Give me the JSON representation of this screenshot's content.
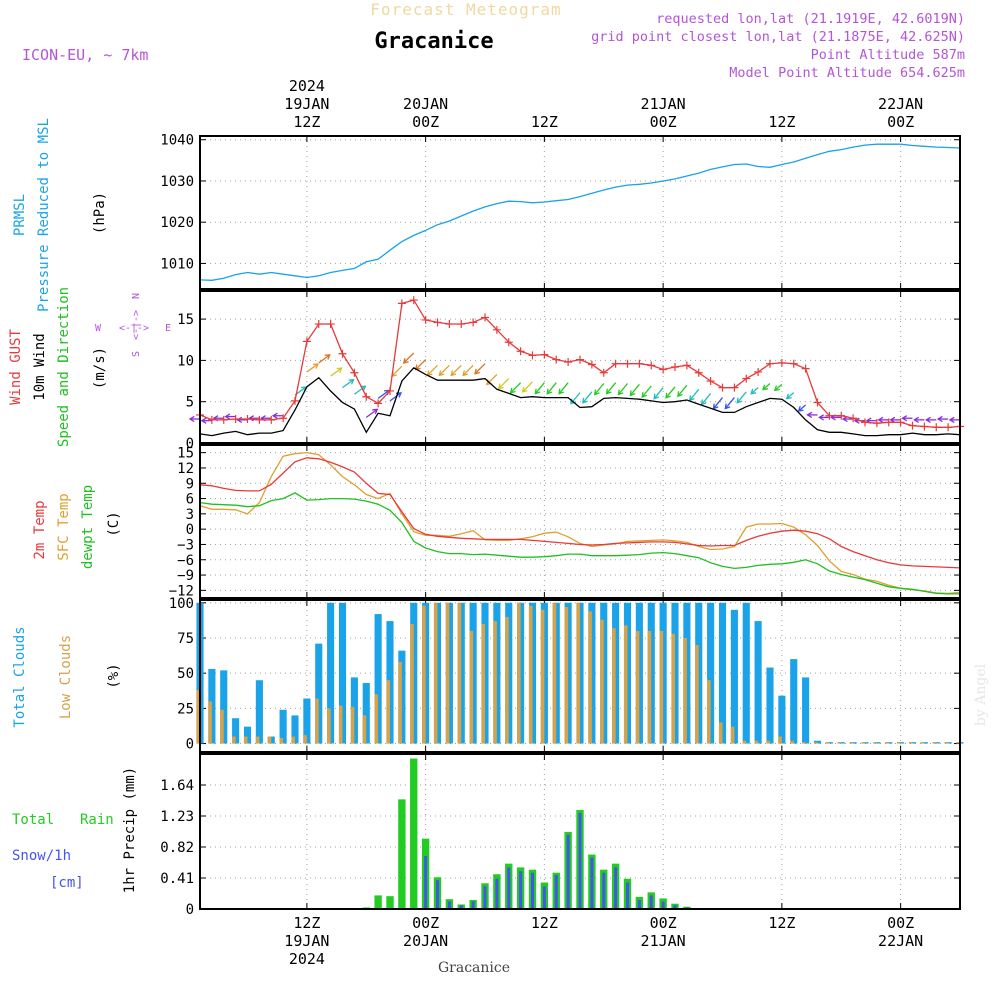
{
  "header": {
    "title": "Forecast Meteogram",
    "location": "Gracanice",
    "model": "ICON-EU, ~ 7km",
    "requested": "requested lon,lat (21.1919E, 42.6019N)",
    "gridpoint": "grid point closest lon,lat (21.1875E, 42.625N)",
    "altitude": "Point Altitude 587m",
    "model_altitude": "Model Point Altitude 654.625m",
    "watermark": "by Angel",
    "footer_location": "Gracanice"
  },
  "colors": {
    "pressure": "#1aa3e8",
    "gust": "#e83a3a",
    "wind": "#000000",
    "temp": "#e83a3a",
    "sfc": "#e0a030",
    "dewpt": "#20c020",
    "total_clouds": "#1aa3e8",
    "low_clouds": "#d4a34a",
    "rain": "#22cc22",
    "snow": "#4455ee",
    "label_purple": "#b455d8"
  },
  "axis": {
    "hours_start": 0,
    "hours_end": 64,
    "top_ticks": [
      {
        "h": 9,
        "l1": "2024",
        "l2": "19JAN",
        "l3": "12Z"
      },
      {
        "h": 19,
        "l1": "",
        "l2": "20JAN",
        "l3": "00Z"
      },
      {
        "h": 29,
        "l1": "",
        "l2": "",
        "l3": "12Z"
      },
      {
        "h": 39,
        "l1": "",
        "l2": "21JAN",
        "l3": "00Z"
      },
      {
        "h": 49,
        "l1": "",
        "l2": "",
        "l3": "12Z"
      },
      {
        "h": 59,
        "l1": "",
        "l2": "22JAN",
        "l3": "00Z"
      }
    ],
    "bottom_ticks": [
      {
        "h": 9,
        "l1": "12Z",
        "l2": "19JAN",
        "l3": "2024"
      },
      {
        "h": 19,
        "l1": "00Z",
        "l2": "20JAN",
        "l3": ""
      },
      {
        "h": 29,
        "l1": "12Z",
        "l2": "",
        "l3": ""
      },
      {
        "h": 39,
        "l1": "00Z",
        "l2": "21JAN",
        "l3": ""
      },
      {
        "h": 49,
        "l1": "12Z",
        "l2": "",
        "l3": ""
      },
      {
        "h": 59,
        "l1": "00Z",
        "l2": "22JAN",
        "l3": ""
      }
    ]
  },
  "chart_data": [
    {
      "id": "pressure",
      "type": "line",
      "title": "PRMSL Pressure Reduced to MSL",
      "labels": [
        "PRMSL",
        "Pressure Reduced to MSL"
      ],
      "ylabel": "(hPa)",
      "ylim": [
        1003.8,
        1040.9
      ],
      "yticks": [
        1010,
        1020,
        1030,
        1040
      ],
      "x": [
        0,
        1,
        2,
        3,
        4,
        5,
        6,
        7,
        8,
        9,
        10,
        11,
        12,
        13,
        14,
        15,
        16,
        17,
        18,
        19,
        20,
        21,
        22,
        23,
        24,
        25,
        26,
        27,
        28,
        29,
        30,
        31,
        32,
        33,
        34,
        35,
        36,
        37,
        38,
        39,
        40,
        41,
        42,
        43,
        44,
        45,
        46,
        47,
        48,
        49,
        50,
        51,
        52,
        53,
        54,
        55,
        56,
        57,
        58,
        59,
        60,
        61,
        62,
        63,
        64
      ],
      "values": [
        1006,
        1005.9,
        1006.4,
        1007.3,
        1007.8,
        1007.4,
        1007.8,
        1007.4,
        1007,
        1006.6,
        1007,
        1007.8,
        1008.3,
        1008.8,
        1010.4,
        1011,
        1013.2,
        1015.3,
        1016.8,
        1018,
        1019.4,
        1020.3,
        1021.5,
        1022.7,
        1023.7,
        1024.5,
        1025.1,
        1025,
        1024.7,
        1024.9,
        1025.2,
        1025.5,
        1026.2,
        1027,
        1027.8,
        1028.5,
        1029,
        1029.2,
        1029.5,
        1030,
        1030.5,
        1031.2,
        1031.9,
        1032.8,
        1033.4,
        1034,
        1034.1,
        1033.5,
        1033.3,
        1034,
        1034.6,
        1035.5,
        1036.4,
        1037.2,
        1037.6,
        1038.2,
        1038.7,
        1038.9,
        1038.9,
        1038.9,
        1038.6,
        1038.4,
        1038.2,
        1038.1,
        1038
      ]
    },
    {
      "id": "wind",
      "type": "line",
      "title": "Wind GUST / 10m Wind Speed and Direction",
      "labels": [
        "Wind GUST",
        "10m Wind",
        "Speed and Direction"
      ],
      "ylabel": "(m/s)",
      "compass": [
        "N",
        "E",
        "S",
        "W"
      ],
      "ylim": [
        0,
        18.4
      ],
      "yticks": [
        0,
        5,
        10,
        15
      ],
      "x": [
        0,
        1,
        2,
        3,
        4,
        5,
        6,
        7,
        8,
        9,
        10,
        11,
        12,
        13,
        14,
        15,
        16,
        17,
        18,
        19,
        20,
        21,
        22,
        23,
        24,
        25,
        26,
        27,
        28,
        29,
        30,
        31,
        32,
        33,
        34,
        35,
        36,
        37,
        38,
        39,
        40,
        41,
        42,
        43,
        44,
        45,
        46,
        47,
        48,
        49,
        50,
        51,
        52,
        53,
        54,
        55,
        56,
        57,
        58,
        59,
        60,
        61,
        62,
        63,
        64
      ],
      "series": [
        {
          "name": "Wind GUST",
          "values": [
            3.4,
            2.8,
            2.8,
            2.9,
            2.9,
            2.8,
            2.8,
            3,
            5.1,
            12.3,
            14.4,
            14.4,
            10.8,
            8.5,
            5.6,
            4.8,
            6.3,
            16.9,
            17.3,
            14.9,
            14.6,
            14.4,
            14.4,
            14.6,
            15.2,
            13.7,
            12.2,
            11.1,
            10.6,
            10.7,
            10.1,
            9.8,
            10.1,
            9.5,
            8.5,
            9.6,
            9.6,
            9.6,
            9.4,
            8.9,
            9.2,
            9.4,
            8.5,
            7.5,
            6.7,
            6.7,
            7.8,
            8.6,
            9.6,
            9.7,
            9.6,
            9,
            4.9,
            3.3,
            3.3,
            3,
            2.5,
            2.4,
            2.5,
            2.5,
            2.1,
            2,
            1.9,
            1.9,
            2
          ]
        },
        {
          "name": "10m Wind",
          "values": [
            1.1,
            0.9,
            1.2,
            1.4,
            1,
            1.2,
            1.2,
            1.5,
            4,
            6.8,
            7.9,
            6.3,
            4.9,
            4.1,
            1.3,
            3.6,
            3.3,
            7.5,
            9.1,
            8.3,
            7.6,
            7.6,
            7.6,
            7.6,
            7.8,
            6.5,
            6,
            5.5,
            5.6,
            5.5,
            5.5,
            5.5,
            4.3,
            4.4,
            5.4,
            5.5,
            5.4,
            5.3,
            5.1,
            4.9,
            5,
            5.2,
            4.7,
            4.2,
            3.7,
            3.7,
            4.4,
            4.9,
            5.4,
            5.3,
            4.3,
            2.8,
            1.6,
            1.3,
            1.3,
            1.1,
            0.9,
            0.9,
            1,
            1,
            1.2,
            1,
            1,
            1.1,
            1
          ]
        }
      ]
    },
    {
      "id": "temperature",
      "type": "line",
      "title": "2m Temp / SFC Temp / dewpt Temp",
      "labels": [
        "2m Temp",
        "SFC Temp",
        "dewpt Temp"
      ],
      "ylabel": "(C)",
      "ylim": [
        -13.5,
        16.5
      ],
      "yticks": [
        -12,
        -9,
        -6,
        -3,
        0,
        3,
        6,
        9,
        12,
        15
      ],
      "x": [
        0,
        1,
        2,
        3,
        4,
        5,
        6,
        7,
        8,
        9,
        10,
        11,
        12,
        13,
        14,
        15,
        16,
        17,
        18,
        19,
        20,
        21,
        22,
        23,
        24,
        25,
        26,
        27,
        28,
        29,
        30,
        31,
        32,
        33,
        34,
        35,
        36,
        37,
        38,
        39,
        40,
        41,
        42,
        43,
        44,
        45,
        46,
        47,
        48,
        49,
        50,
        51,
        52,
        53,
        54,
        55,
        56,
        57,
        58,
        59,
        60,
        61,
        62,
        63,
        64
      ],
      "series": [
        {
          "name": "2m Temp",
          "values": [
            8.7,
            8.5,
            8,
            7.6,
            7.5,
            7.5,
            8.8,
            11,
            13.2,
            14,
            13.8,
            13.1,
            12.2,
            11.2,
            9,
            7,
            6.8,
            3.4,
            0.1,
            -1,
            -1.4,
            -1.6,
            -1.8,
            -1.9,
            -2,
            -2,
            -2,
            -2,
            -2.2,
            -2.4,
            -2.6,
            -2.8,
            -3,
            -3.1,
            -3,
            -2.8,
            -2.7,
            -2.6,
            -2.5,
            -2.5,
            -2.6,
            -2.9,
            -3.2,
            -3.3,
            -3.2,
            -3.2,
            -2.2,
            -1.4,
            -0.8,
            -0.4,
            -0.2,
            -0.4,
            -0.9,
            -1.9,
            -3.4,
            -4.4,
            -5.2,
            -6,
            -6.6,
            -7,
            -7.2,
            -7.3,
            -7.4,
            -7.5,
            -7.6
          ]
        },
        {
          "name": "SFC Temp",
          "values": [
            4.6,
            3.9,
            3.9,
            3.8,
            3,
            5.2,
            10.3,
            14.3,
            14.8,
            15,
            14.6,
            12.6,
            10.3,
            8.7,
            6.8,
            6,
            7,
            3,
            -0.5,
            -1.2,
            -1.2,
            -1.4,
            -0.9,
            -0.3,
            -2.1,
            -2.2,
            -2.2,
            -1.9,
            -1.5,
            -0.8,
            -0.6,
            -1.5,
            -2.8,
            -3.4,
            -3.1,
            -2.9,
            -2.4,
            -2.3,
            -2.2,
            -2.1,
            -2.3,
            -2.6,
            -3.4,
            -4,
            -3.9,
            -3.4,
            0.4,
            1,
            1,
            1.1,
            0.4,
            -1.1,
            -3.2,
            -6.2,
            -8.3,
            -8.9,
            -9.8,
            -10.2,
            -11,
            -11.6,
            -11.9,
            -12.1,
            -12.5,
            -12.6,
            -12.4
          ]
        },
        {
          "name": "dewpt Temp",
          "values": [
            5.2,
            4.9,
            4.8,
            4.7,
            4.4,
            4.6,
            5.6,
            6,
            7.1,
            5.7,
            5.8,
            6,
            6,
            5.9,
            5.5,
            4.9,
            3.7,
            1.3,
            -2.4,
            -3.7,
            -4.4,
            -4.8,
            -4.8,
            -5,
            -4.9,
            -5.1,
            -5.3,
            -5.5,
            -5.5,
            -5.4,
            -5.2,
            -4.9,
            -4.9,
            -5.2,
            -5.2,
            -5.2,
            -5.1,
            -5,
            -4.7,
            -4.6,
            -4.8,
            -5.2,
            -5.6,
            -6.6,
            -7.3,
            -7.7,
            -7.5,
            -7.1,
            -6.9,
            -6.8,
            -6.5,
            -6,
            -6.8,
            -8.2,
            -8.9,
            -9.4,
            -9.9,
            -10.6,
            -11.3,
            -11.6,
            -11.8,
            -12.2,
            -12.6,
            -12.7,
            -12.7
          ]
        }
      ]
    },
    {
      "id": "clouds",
      "type": "bar",
      "title": "Total Clouds / Low Clouds",
      "labels": [
        "Total Clouds",
        "Low Clouds"
      ],
      "ylabel": "(%)",
      "ylim": [
        -6,
        102
      ],
      "yticks": [
        0,
        25,
        50,
        75,
        100
      ],
      "x": [
        0,
        1,
        2,
        3,
        4,
        5,
        6,
        7,
        8,
        9,
        10,
        11,
        12,
        13,
        14,
        15,
        16,
        17,
        18,
        19,
        20,
        21,
        22,
        23,
        24,
        25,
        26,
        27,
        28,
        29,
        30,
        31,
        32,
        33,
        34,
        35,
        36,
        37,
        38,
        39,
        40,
        41,
        42,
        43,
        44,
        45,
        46,
        47,
        48,
        49,
        50,
        51,
        52,
        53,
        54,
        55,
        56,
        57,
        58,
        59,
        60,
        61,
        62,
        63,
        64
      ],
      "series": [
        {
          "name": "Total Clouds",
          "values": [
            100,
            53,
            52,
            18,
            12,
            45,
            5,
            24,
            20,
            32,
            71,
            100,
            100,
            47,
            43,
            92,
            87,
            66,
            100,
            100,
            100,
            100,
            100,
            100,
            100,
            100,
            100,
            100,
            100,
            100,
            100,
            100,
            100,
            100,
            100,
            100,
            100,
            100,
            100,
            100,
            100,
            100,
            100,
            100,
            100,
            95,
            100,
            87,
            54,
            34,
            60,
            47,
            2,
            1,
            1,
            1,
            1,
            1,
            1,
            1,
            1,
            1,
            1,
            1,
            1
          ]
        },
        {
          "name": "Low Clouds",
          "values": [
            38,
            30,
            24,
            5,
            5,
            5,
            5,
            4,
            5,
            6,
            32,
            25,
            27,
            26,
            20,
            35,
            45,
            58,
            85,
            98,
            100,
            100,
            100,
            80,
            85,
            87,
            90,
            100,
            98,
            95,
            100,
            97,
            100,
            94,
            88,
            82,
            84,
            80,
            80,
            80,
            78,
            75,
            70,
            45,
            15,
            12,
            2,
            2,
            2,
            5,
            2,
            1,
            1,
            1,
            1,
            1,
            1,
            1,
            1,
            1,
            1,
            1,
            1,
            1,
            1
          ]
        }
      ]
    },
    {
      "id": "precip",
      "type": "bar",
      "title": "Total Rain / Snow/1h [cm] / 1hr Precip (mm)",
      "labels": [
        "Total",
        "Rain",
        "Snow/1h",
        "[cm]"
      ],
      "ylabel": "1hr Precip (mm)",
      "ylim": [
        0,
        2.05
      ],
      "yticks": [
        0,
        0.41,
        0.82,
        1.23,
        1.64
      ],
      "x": [
        0,
        1,
        2,
        3,
        4,
        5,
        6,
        7,
        8,
        9,
        10,
        11,
        12,
        13,
        14,
        15,
        16,
        17,
        18,
        19,
        20,
        21,
        22,
        23,
        24,
        25,
        26,
        27,
        28,
        29,
        30,
        31,
        32,
        33,
        34,
        35,
        36,
        37,
        38,
        39,
        40,
        41,
        42,
        43,
        44,
        45,
        46,
        47,
        48,
        49,
        50,
        51,
        52,
        53,
        54,
        55,
        56,
        57,
        58,
        59,
        60,
        61,
        62,
        63,
        64
      ],
      "series": [
        {
          "name": "Total Rain",
          "values": [
            0,
            0,
            0,
            0,
            0,
            0,
            0,
            0,
            0,
            0,
            0,
            0,
            0,
            0,
            0.02,
            0.18,
            0.17,
            1.45,
            1.99,
            0.93,
            0.42,
            0.13,
            0.06,
            0.12,
            0.34,
            0.46,
            0.6,
            0.55,
            0.52,
            0.35,
            0.48,
            1.02,
            1.31,
            0.72,
            0.52,
            0.6,
            0.4,
            0.16,
            0.22,
            0.14,
            0.07,
            0.03,
            0,
            0,
            0,
            0,
            0,
            0,
            0,
            0,
            0,
            0,
            0,
            0,
            0,
            0,
            0,
            0,
            0,
            0,
            0,
            0,
            0,
            0,
            0
          ]
        },
        {
          "name": "Snow/1h",
          "values": [
            0,
            0,
            0,
            0,
            0,
            0,
            0,
            0,
            0,
            0,
            0,
            0,
            0,
            0,
            0,
            0,
            0,
            0,
            0,
            0.7,
            0.38,
            0.1,
            0.05,
            0.1,
            0.3,
            0.4,
            0.55,
            0.5,
            0.48,
            0.3,
            0.45,
            0.98,
            1.27,
            0.68,
            0.48,
            0.55,
            0.35,
            0.12,
            0.18,
            0.1,
            0.05,
            0.02,
            0,
            0,
            0,
            0,
            0,
            0,
            0,
            0,
            0,
            0,
            0,
            0,
            0,
            0,
            0,
            0,
            0,
            0,
            0,
            0,
            0,
            0,
            0
          ]
        }
      ]
    }
  ]
}
